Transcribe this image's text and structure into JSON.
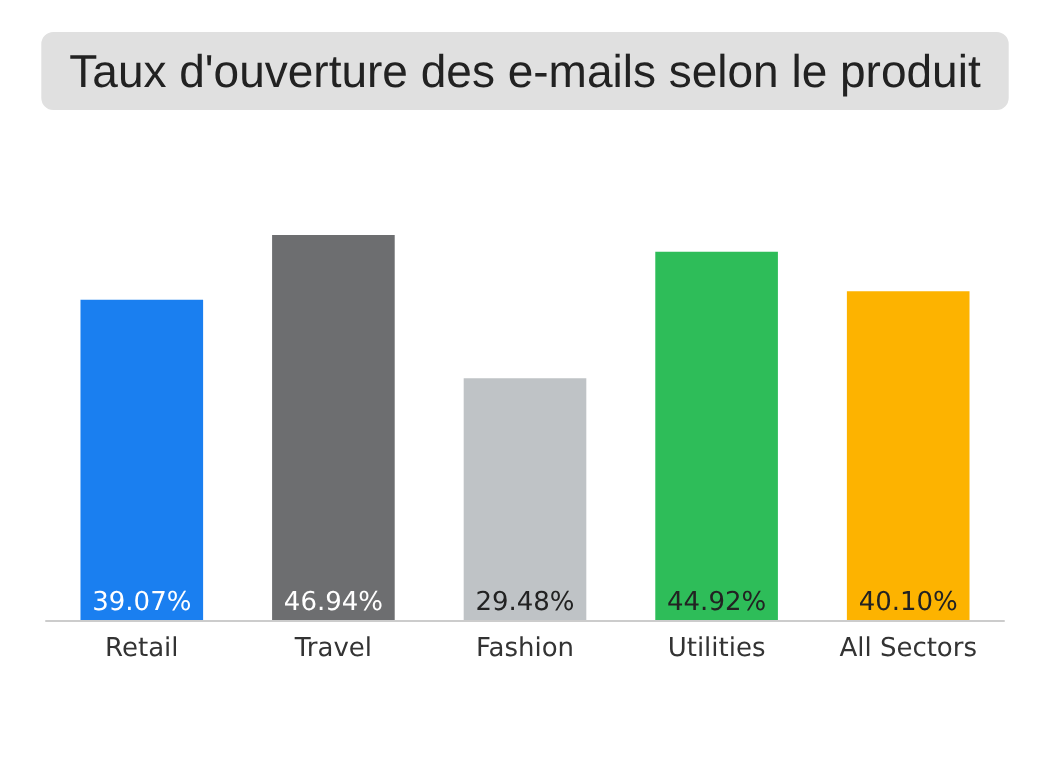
{
  "chart_data": {
    "type": "bar",
    "title": "Taux d'ouverture des e-mails selon le produit",
    "categories": [
      "Retail",
      "Travel",
      "Fashion",
      "Utilities",
      "All Sectors"
    ],
    "values": [
      39.07,
      46.94,
      29.48,
      44.92,
      40.1
    ],
    "colors": [
      "#1a7ff0",
      "#6d6e70",
      "#bfc3c6",
      "#2ebd59",
      "#fdb300"
    ],
    "value_labels": [
      "39.07%",
      "46.94%",
      "29.48%",
      "44.92%",
      "40.10%"
    ]
  }
}
